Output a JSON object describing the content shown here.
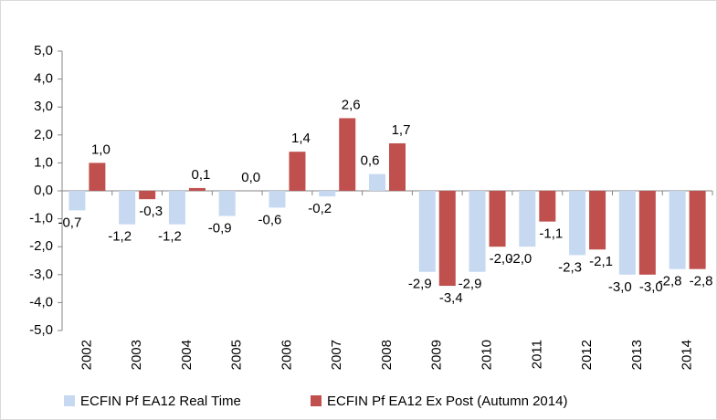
{
  "chart_data": {
    "type": "bar",
    "categories": [
      "2002",
      "2003",
      "2004",
      "2005",
      "2006",
      "2007",
      "2008",
      "2009",
      "2010",
      "2011",
      "2012",
      "2013",
      "2014"
    ],
    "series": [
      {
        "name": "ECFIN Pf EA12 Real Time",
        "color": "#c6d9f1",
        "values": [
          -0.7,
          -1.2,
          -1.2,
          -0.9,
          -0.6,
          -0.2,
          0.6,
          -2.9,
          -2.9,
          -2.0,
          -2.3,
          -3.0,
          -2.8
        ],
        "value_labels": [
          "-0,7",
          "-1,2",
          "-1,2",
          "-0,9",
          "-0,6",
          "-0,2",
          "0,6",
          "-2,9",
          "-2,9",
          "-2,0",
          "-2,3",
          "-3,0",
          "-2,8"
        ]
      },
      {
        "name": "ECFIN Pf EA12 Ex Post (Autumn 2014)",
        "color": "#c0504d",
        "values": [
          1.0,
          -0.3,
          0.1,
          0.0,
          1.4,
          2.6,
          1.7,
          -3.4,
          -2.0,
          -1.1,
          -2.1,
          -3.0,
          -2.8
        ],
        "value_labels": [
          "1,0",
          "-0,3",
          "0,1",
          "0,0",
          "1,4",
          "2,6",
          "1,7",
          "-3,4",
          "-2,0",
          "-1,1",
          "-2,1",
          "-3,0",
          "-2,8"
        ]
      }
    ],
    "ylim": [
      -5,
      5
    ],
    "yticks": [
      {
        "value": -5,
        "label": "-5,0"
      },
      {
        "value": -4,
        "label": "-4,0"
      },
      {
        "value": -3,
        "label": "-3,0"
      },
      {
        "value": -2,
        "label": "-2,0"
      },
      {
        "value": -1,
        "label": "-1,0"
      },
      {
        "value": 0,
        "label": "0,0"
      },
      {
        "value": 1,
        "label": "1,0"
      },
      {
        "value": 2,
        "label": "2,0"
      },
      {
        "value": 3,
        "label": "3,0"
      },
      {
        "value": 4,
        "label": "4,0"
      },
      {
        "value": 5,
        "label": "5,0"
      }
    ],
    "grid": false,
    "legend": "bottom"
  }
}
